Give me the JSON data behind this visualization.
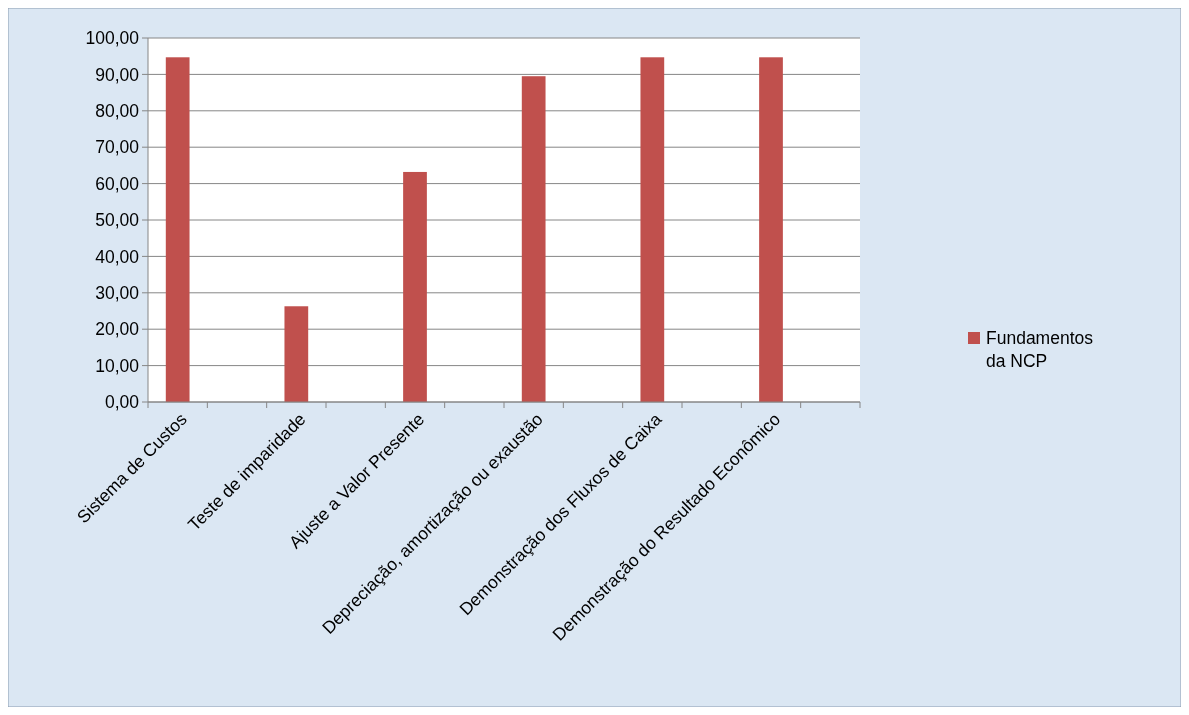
{
  "chart_data": {
    "type": "bar",
    "categories": [
      "Sistema de Custos",
      null,
      "Teste de imparidade",
      null,
      "Ajuste a Valor Presente",
      null,
      "Depreciação, amortização ou exaustão",
      null,
      "Demonstração dos Fluxos de Caixa",
      null,
      "Demonstração do Resultado Econômico",
      null
    ],
    "series": [
      {
        "name": "Fundamentos da NCP",
        "color": "#c0504d",
        "values": [
          94.7,
          null,
          26.3,
          null,
          63.2,
          null,
          89.5,
          null,
          94.7,
          null,
          94.7,
          null
        ]
      }
    ],
    "ylim": [
      0,
      100
    ],
    "yticks": [
      {
        "value": 0,
        "label": "0,00"
      },
      {
        "value": 10,
        "label": "10,00"
      },
      {
        "value": 20,
        "label": "20,00"
      },
      {
        "value": 30,
        "label": "30,00"
      },
      {
        "value": 40,
        "label": "40,00"
      },
      {
        "value": 50,
        "label": "50,00"
      },
      {
        "value": 60,
        "label": "60,00"
      },
      {
        "value": 70,
        "label": "70,00"
      },
      {
        "value": 80,
        "label": "80,00"
      },
      {
        "value": 90,
        "label": "90,00"
      },
      {
        "value": 100,
        "label": "100,00"
      }
    ],
    "grid": "y",
    "legend": "right"
  }
}
